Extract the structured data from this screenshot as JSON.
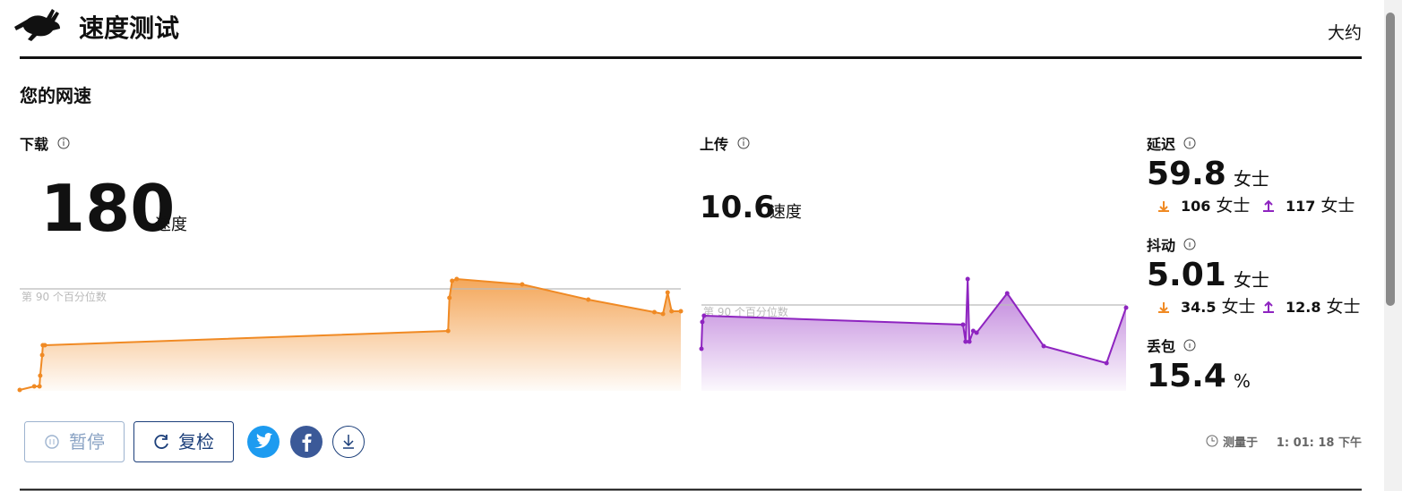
{
  "header": {
    "title": "速度测试",
    "menu": "大约"
  },
  "section_title": "您的网速",
  "download": {
    "label": "下载",
    "value": 180,
    "unit": "速度"
  },
  "upload": {
    "label": "上传",
    "value": 10.6,
    "unit": "速度"
  },
  "latency": {
    "label": "延迟",
    "value": 59.8,
    "unit": "女士",
    "down": 106,
    "down_unit": "女士",
    "up": 117,
    "up_unit": "女士"
  },
  "jitter": {
    "label": "抖动",
    "value": 5.01,
    "unit": "女士",
    "down": 34.5,
    "down_unit": "女士",
    "up": 12.8,
    "up_unit": "女士"
  },
  "loss": {
    "label": "丢包",
    "value": 15.4,
    "unit": "%"
  },
  "download_chart": {
    "type": "area",
    "color": "#f08a24",
    "percentile_label": "第 90 个百分位数",
    "percentile": 114,
    "xlim": [
      0,
      100
    ],
    "ylim": [
      0,
      130
    ],
    "x": [
      0,
      2.2,
      3,
      3.1,
      3.4,
      3.5,
      3.8,
      64.8,
      65,
      65.4,
      66.1,
      76,
      86,
      96,
      97.3,
      98,
      98.6,
      100
    ],
    "values": [
      1,
      5,
      5,
      17,
      40,
      51,
      51,
      67,
      104,
      123,
      125,
      119,
      102,
      88,
      86,
      110,
      89,
      89
    ]
  },
  "upload_chart": {
    "type": "area",
    "color": "#8e24c0",
    "percentile_label": "第 90 个百分位数",
    "percentile": 96,
    "xlim": [
      0,
      100
    ],
    "ylim": [
      0,
      130
    ],
    "x": [
      0,
      0.2,
      0.6,
      61.6,
      62.2,
      62.7,
      63.1,
      64,
      64.8,
      72,
      80.6,
      95.4,
      100
    ],
    "values": [
      47,
      77,
      84,
      74,
      55,
      125,
      55,
      67,
      65,
      109,
      50,
      31,
      93
    ]
  },
  "buttons": {
    "pause": "暂停",
    "retest": "复检"
  },
  "measured": {
    "label": "测量于",
    "time": "1: 01: 18 下午"
  }
}
